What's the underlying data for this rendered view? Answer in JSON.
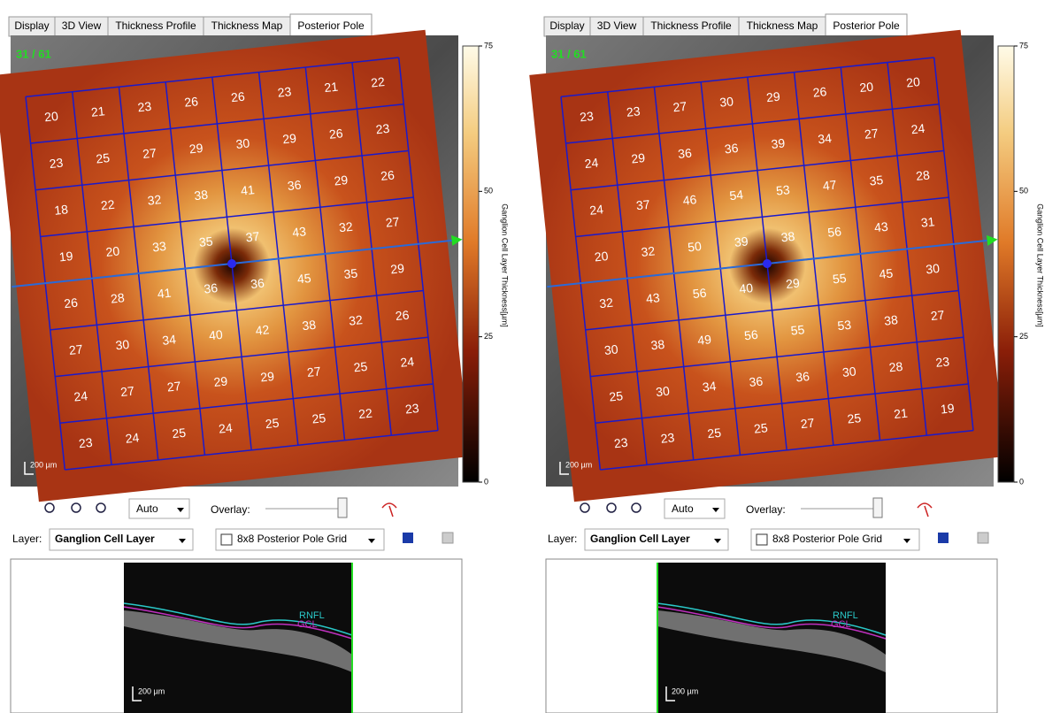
{
  "panels": [
    {
      "tabs": [
        "Display",
        "3D View",
        "Thickness Profile",
        "Thickness Map",
        "Posterior Pole"
      ],
      "frame": "31 / 61",
      "grid": [
        [
          20,
          21,
          23,
          26,
          26,
          23,
          21,
          22
        ],
        [
          23,
          25,
          27,
          29,
          30,
          29,
          26,
          23
        ],
        [
          18,
          22,
          32,
          38,
          41,
          36,
          29,
          26
        ],
        [
          19,
          20,
          33,
          35,
          37,
          43,
          32,
          27
        ],
        [
          26,
          28,
          41,
          36,
          36,
          45,
          35,
          29
        ],
        [
          27,
          30,
          34,
          40,
          42,
          38,
          32,
          26
        ],
        [
          24,
          27,
          27,
          29,
          29,
          27,
          25,
          24
        ],
        [
          23,
          24,
          25,
          24,
          25,
          25,
          22,
          23
        ]
      ],
      "colorbar": {
        "ticks": [
          0,
          25,
          50,
          75
        ],
        "label": "Ganglion Cell Layer Thickness[µm]"
      },
      "scale_label": "200 µm",
      "zoom": "Auto",
      "overlay_label": "Overlay:",
      "layer_label": "Layer:",
      "layer": "Ganglion Cell Layer",
      "grid_type": "8x8 Posterior Pole Grid",
      "bscan": {
        "labels": [
          "RNFL",
          "GCL"
        ],
        "scale_label": "200 µm"
      }
    },
    {
      "tabs": [
        "Display",
        "3D View",
        "Thickness Profile",
        "Thickness Map",
        "Posterior Pole"
      ],
      "frame": "31 / 61",
      "grid": [
        [
          23,
          23,
          27,
          30,
          29,
          26,
          20,
          20
        ],
        [
          24,
          29,
          36,
          36,
          39,
          34,
          27,
          24
        ],
        [
          24,
          37,
          46,
          54,
          53,
          47,
          35,
          28
        ],
        [
          20,
          32,
          50,
          39,
          38,
          56,
          43,
          31
        ],
        [
          32,
          43,
          56,
          40,
          29,
          55,
          45,
          30
        ],
        [
          30,
          38,
          49,
          56,
          55,
          53,
          38,
          27
        ],
        [
          25,
          30,
          34,
          36,
          36,
          30,
          28,
          23
        ],
        [
          23,
          23,
          25,
          25,
          27,
          25,
          21,
          19
        ]
      ],
      "colorbar": {
        "ticks": [
          0,
          25,
          50,
          75
        ],
        "label": "Ganglion Cell Layer Thickness[µm]"
      },
      "scale_label": "200 µm",
      "zoom": "Auto",
      "overlay_label": "Overlay:",
      "layer_label": "Layer:",
      "layer": "Ganglion Cell Layer",
      "grid_type": "8x8 Posterior Pole Grid",
      "bscan": {
        "labels": [
          "RNFL",
          "GCL"
        ],
        "scale_label": "200 µm"
      }
    }
  ]
}
